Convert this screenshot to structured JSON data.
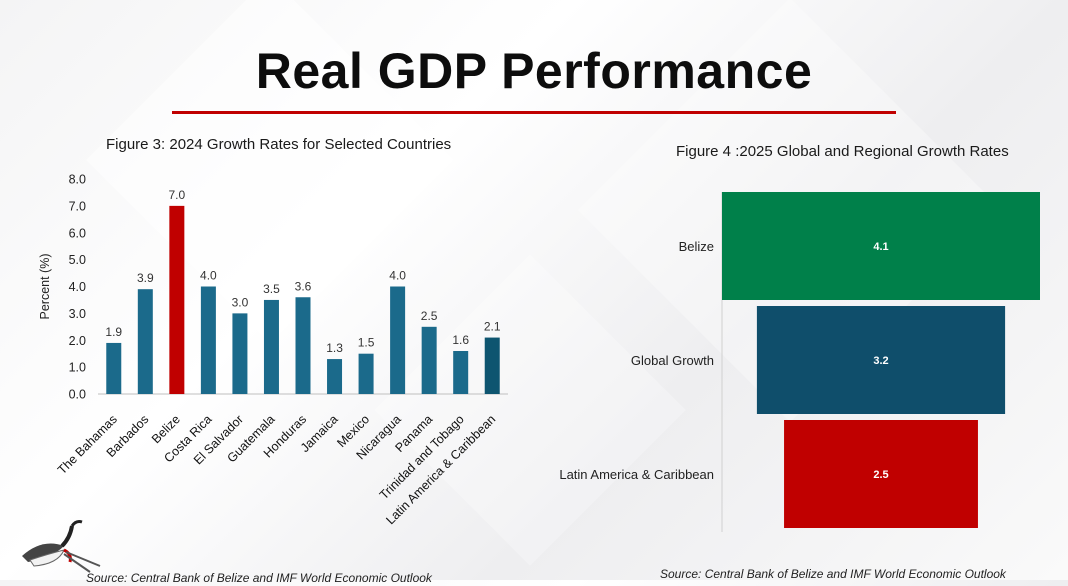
{
  "title": "Real GDP Performance",
  "colors": {
    "accent_red": "#c00000",
    "bar_blue": "#1b6a8b",
    "belize_green": "#00804a",
    "global_blue": "#0f4e6b",
    "lac_teal": "#0e5570"
  },
  "sources": {
    "left": "Source: Central Bank of Belize and IMF World Economic Outlook",
    "right": "Source: Central Bank of Belize and IMF World Economic Outlook"
  },
  "logo": {
    "icon": "jabiru-bird-icon"
  },
  "chart_data": [
    {
      "type": "bar",
      "title": "Figure 3: 2024 Growth Rates for Selected Countries",
      "ylabel": "Percent (%)",
      "xlabel": "",
      "ylim": [
        0,
        8
      ],
      "yticks": [
        "0.0",
        "1.0",
        "2.0",
        "3.0",
        "4.0",
        "5.0",
        "6.0",
        "7.0",
        "8.0"
      ],
      "categories": [
        "The Bahamas",
        "Barbados",
        "Belize",
        "Costa Rica",
        "El Salvador",
        "Guatemala",
        "Honduras",
        "Jamaica",
        "Mexico",
        "Nicaragua",
        "Panama",
        "Trinidad and Tobago",
        "Latin America & Caribbean"
      ],
      "values": [
        1.9,
        3.9,
        7.0,
        4.0,
        3.0,
        3.5,
        3.6,
        1.3,
        1.5,
        4.0,
        2.5,
        1.6,
        2.1
      ],
      "value_labels": [
        "1.9",
        "3.9",
        "7.0",
        "4.0",
        "3.0",
        "3.5",
        "3.6",
        "1.3",
        "1.5",
        "4.0",
        "2.5",
        "1.6",
        "2.1"
      ],
      "bar_colors": [
        "#1b6a8b",
        "#1b6a8b",
        "#c00000",
        "#1b6a8b",
        "#1b6a8b",
        "#1b6a8b",
        "#1b6a8b",
        "#1b6a8b",
        "#1b6a8b",
        "#1b6a8b",
        "#1b6a8b",
        "#1b6a8b",
        "#0e5570"
      ],
      "grid": false
    },
    {
      "type": "bar",
      "orientation": "horizontal-funnel",
      "title": "Figure 4 :2025 Global and Regional Growth Rates",
      "categories": [
        "Belize",
        "Global Growth",
        "Latin America & Caribbean"
      ],
      "values": [
        4.1,
        3.2,
        2.5
      ],
      "value_labels": [
        "4.1",
        "3.2",
        "2.5"
      ],
      "bar_colors": [
        "#00804a",
        "#0f4e6b",
        "#c00000"
      ],
      "grid": false
    }
  ]
}
